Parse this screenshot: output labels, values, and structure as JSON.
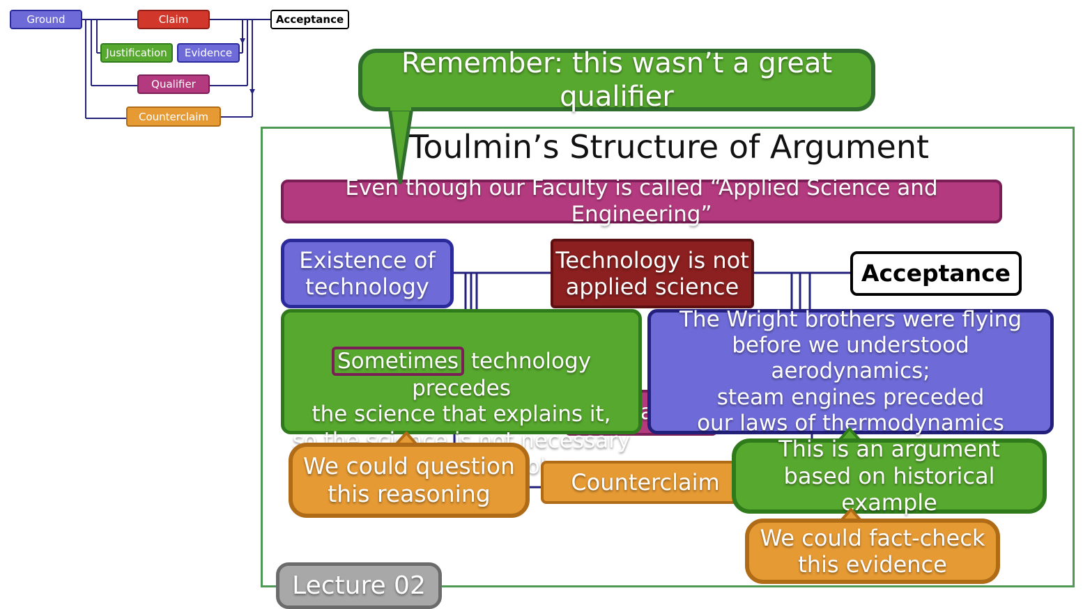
{
  "mini_diagram": {
    "ground": "Ground",
    "claim": "Claim",
    "acceptance": "Acceptance",
    "justification": "Justification",
    "evidence": "Evidence",
    "qualifier": "Qualifier",
    "counterclaim": "Counterclaim"
  },
  "slide": {
    "title": "Toulmin’s Structure of Argument",
    "qualifier_text": "Even though our Faculty is called “Applied Science and Engineering”",
    "ground_text": "Existence of\ntechnology",
    "claim_text": "Technology is not\napplied science",
    "acceptance_text": "Acceptance",
    "justification_prefix": "Sometimes",
    "justification_text": " technology precedes\nthe science that explains it,\nso the science is not necessary\nprior to the technology",
    "evidence_text": "The Wright brothers were flying\nbefore we understood aerodynamics;\nsteam engines preceded\nour laws of thermodynamics",
    "counterclaim_text": "Counterclaim",
    "hidden_fragment": "a"
  },
  "callouts": {
    "remember": "Remember: this wasn’t a great qualifier",
    "question_reasoning": "We could question\nthis reasoning",
    "historical": "This is an argument\nbased on historical example",
    "fact_check": "We could fact-check\nthis evidence"
  },
  "lecture_label": "Lecture 02",
  "colors": {
    "ground": "#6e6bd8",
    "claim": "#d1372a",
    "justification": "#57a82e",
    "evidence": "#6e6bd8",
    "qualifier": "#b43a7f",
    "counterclaim": "#e69a34",
    "frame": "#4e9a55",
    "connector": "#22207a"
  }
}
